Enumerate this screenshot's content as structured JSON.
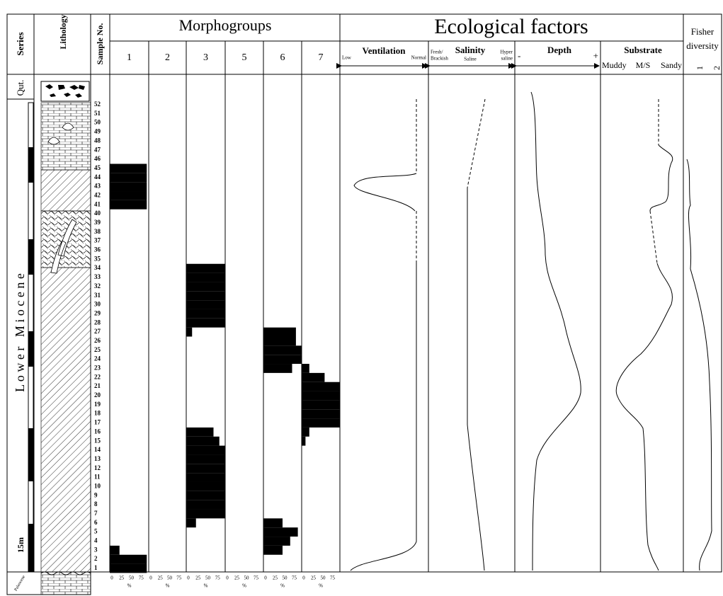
{
  "chart_data": {
    "type": "bar",
    "title": "Morphogroups",
    "categories": [
      1,
      2,
      3,
      4,
      5,
      6,
      7,
      8,
      9,
      10,
      11,
      12,
      13,
      14,
      15,
      16,
      17,
      18,
      19,
      20,
      21,
      22,
      23,
      24,
      25,
      26,
      27,
      28,
      29,
      30,
      31,
      32,
      33,
      34,
      35,
      36,
      37,
      38,
      39,
      40,
      41,
      42,
      43,
      44,
      45,
      46,
      47,
      48,
      49,
      50,
      51,
      52
    ],
    "series": [
      {
        "name": "1",
        "color": "#000000",
        "values": [
          95,
          95,
          25,
          0,
          0,
          0,
          0,
          0,
          0,
          0,
          0,
          0,
          0,
          0,
          0,
          0,
          0,
          0,
          0,
          0,
          0,
          0,
          0,
          0,
          0,
          0,
          0,
          0,
          0,
          0,
          0,
          0,
          0,
          0,
          0,
          0,
          0,
          0,
          0,
          0,
          95,
          95,
          95,
          95,
          95,
          0,
          0,
          0,
          0,
          0,
          0,
          0
        ]
      },
      {
        "name": "2",
        "color": "#000000",
        "values": [
          0,
          0,
          0,
          0,
          0,
          0,
          0,
          0,
          0,
          0,
          0,
          0,
          0,
          0,
          0,
          0,
          0,
          0,
          0,
          0,
          0,
          0,
          0,
          0,
          0,
          0,
          0,
          0,
          0,
          0,
          0,
          0,
          0,
          0,
          0,
          0,
          0,
          0,
          0,
          0,
          0,
          0,
          0,
          0,
          0,
          0,
          0,
          0,
          0,
          0,
          0,
          0
        ]
      },
      {
        "name": "3",
        "color": "#000000",
        "values": [
          0,
          0,
          0,
          0,
          0,
          25,
          100,
          100,
          100,
          100,
          100,
          100,
          100,
          100,
          85,
          70,
          0,
          0,
          0,
          0,
          0,
          0,
          0,
          0,
          0,
          0,
          15,
          100,
          100,
          100,
          100,
          100,
          100,
          100,
          0,
          0,
          0,
          0,
          0,
          0,
          0,
          0,
          0,
          0,
          0,
          0,
          0,
          0,
          0,
          0,
          0,
          0
        ]
      },
      {
        "name": "5",
        "color": "#000000",
        "values": [
          0,
          0,
          0,
          0,
          0,
          0,
          0,
          0,
          0,
          0,
          0,
          0,
          0,
          0,
          0,
          0,
          0,
          0,
          0,
          0,
          0,
          0,
          0,
          0,
          0,
          0,
          0,
          0,
          0,
          0,
          0,
          0,
          0,
          0,
          0,
          0,
          0,
          0,
          0,
          0,
          0,
          0,
          0,
          0,
          0,
          0,
          0,
          0,
          0,
          0,
          0,
          0
        ]
      },
      {
        "name": "6",
        "color": "#000000",
        "values": [
          0,
          0,
          50,
          70,
          90,
          50,
          0,
          0,
          0,
          0,
          0,
          0,
          0,
          0,
          0,
          0,
          0,
          0,
          0,
          0,
          0,
          0,
          75,
          100,
          100,
          85,
          85,
          0,
          0,
          0,
          0,
          0,
          0,
          0,
          0,
          0,
          0,
          0,
          0,
          0,
          0,
          0,
          0,
          0,
          0,
          0,
          0,
          0,
          0,
          0,
          0,
          0
        ]
      },
      {
        "name": "7",
        "color": "#000000",
        "values": [
          0,
          0,
          0,
          0,
          0,
          0,
          0,
          0,
          0,
          0,
          0,
          0,
          0,
          0,
          10,
          20,
          100,
          100,
          100,
          100,
          100,
          60,
          20,
          0,
          0,
          0,
          0,
          0,
          0,
          0,
          0,
          0,
          0,
          0,
          0,
          0,
          0,
          0,
          0,
          0,
          0,
          0,
          0,
          0,
          0,
          0,
          0,
          0,
          0,
          0,
          0,
          0
        ]
      }
    ],
    "xlim": [
      0,
      100
    ],
    "xticks": [
      0,
      25,
      50,
      75
    ],
    "x_label": "%"
  },
  "header": {
    "series": "Series",
    "lithology": "Lithology",
    "sample_no": "Sample No."
  },
  "stratigraphy": {
    "quaternary": "Qut.",
    "lower_miocene": "L o w e r   M i o c e n e",
    "scale": "15m",
    "paleocene": "Paleocene"
  },
  "ecology": {
    "title": "Ecological factors",
    "ventilation": {
      "label": "Ventilation",
      "low": "Low",
      "high": "Normal"
    },
    "salinity": {
      "label": "Salinity",
      "low": [
        "Fresh/",
        "Brackish"
      ],
      "mid": "Saline",
      "high": [
        "Hyper",
        "saline"
      ]
    },
    "depth": {
      "label": "Depth",
      "low": "-",
      "high": "+"
    },
    "substrate": {
      "label": "Substrate",
      "low": "Muddy",
      "mid": "M/S",
      "high": "Sandy"
    },
    "fisher": {
      "label": [
        "Fisher",
        "diversity"
      ],
      "ticks": [
        "1",
        "2"
      ]
    }
  }
}
